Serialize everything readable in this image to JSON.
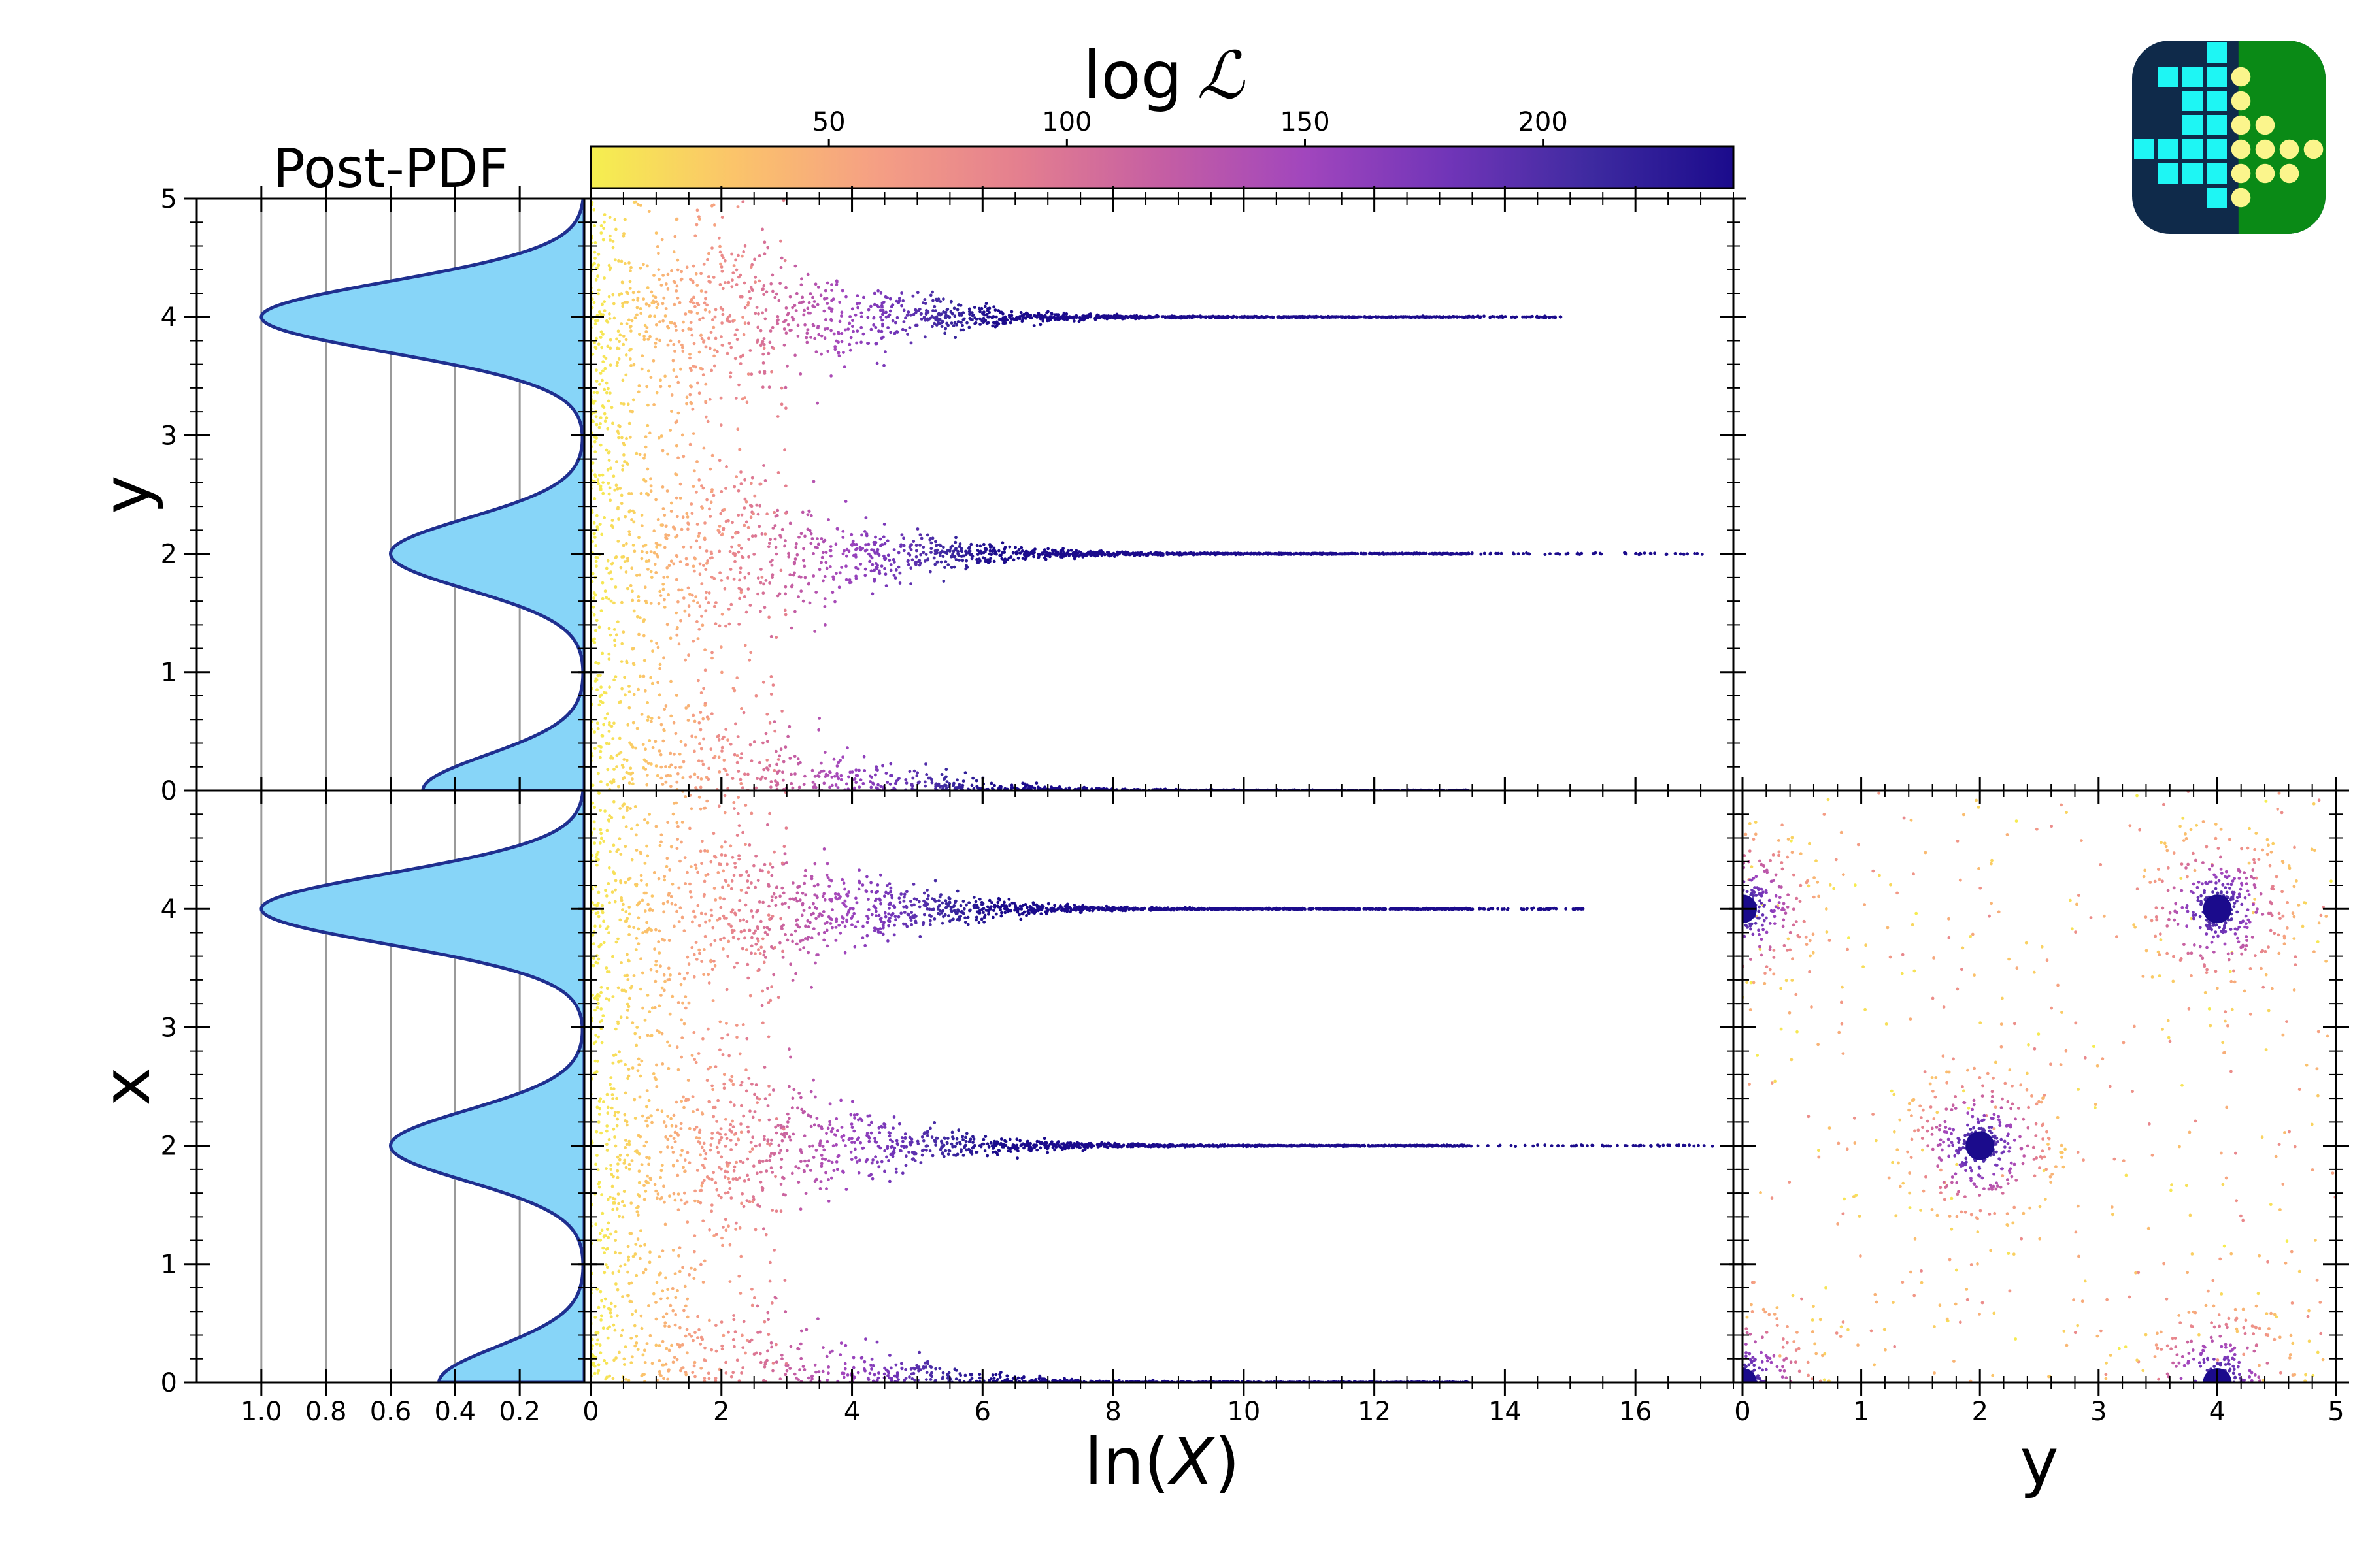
{
  "figure": {
    "colorbar_label": "log",
    "colorbar_label_symbol": "ℒ",
    "pdf_title": "Post-PDF",
    "xlabel_main": "ln(",
    "xlabel_main_var": "X",
    "xlabel_main_close": ")",
    "xlabel_corner": "y",
    "ylabel_top": "y",
    "ylabel_bottom": "x"
  },
  "colors": {
    "pdf_fill": "#87d5f8",
    "pdf_line": "#1f2f8f",
    "pdf_grid": "#9a9a9a",
    "colormap": [
      "#f5ef4f",
      "#fbc46a",
      "#f59f84",
      "#e47f8f",
      "#c55ea3",
      "#a146bd",
      "#7135b8",
      "#3e2aa0",
      "#1b0b8c"
    ],
    "logo_background": "#0f2a4a",
    "logo_cyan": "#1ef6f4",
    "logo_green": "#0a8a16",
    "logo_yellow": "#fbf58c"
  },
  "logo_icon": "grid-logo-icon",
  "chart_data": [
    {
      "type": "colorbar",
      "label": "log ℒ",
      "range": [
        0,
        240
      ],
      "ticks": [
        50,
        100,
        150,
        200
      ],
      "colormap": "plasma_r"
    },
    {
      "type": "area",
      "panel": "posterior-pdf-y",
      "title": "Post-PDF",
      "orientation": "horizontal",
      "ylabel": "y",
      "ylim": [
        0,
        5
      ],
      "xlim": [
        1.2,
        0
      ],
      "yticks": [
        0,
        1,
        2,
        3,
        4,
        5
      ],
      "peaks": [
        {
          "y": 0,
          "density": 0.5
        },
        {
          "y": 2,
          "density": 0.6
        },
        {
          "y": 4,
          "density": 1.0
        }
      ],
      "grid": true
    },
    {
      "type": "scatter",
      "panel": "lnX-vs-y",
      "xlim": [
        0,
        17.5
      ],
      "ylim": [
        0,
        5
      ],
      "xticks": [
        0,
        2,
        4,
        6,
        8,
        10,
        12,
        14,
        16
      ],
      "yticks": [
        0,
        1,
        2,
        3,
        4,
        5
      ],
      "modes_y": [
        0,
        2,
        4
      ],
      "mode_max_lnX": {
        "0": 13.4,
        "2": 17.2,
        "4": 14.9
      },
      "color_by": "log ℒ"
    },
    {
      "type": "area",
      "panel": "posterior-pdf-x",
      "orientation": "horizontal",
      "ylabel": "x",
      "ylim": [
        0,
        5
      ],
      "xlim": [
        1.2,
        0
      ],
      "xticks": [
        1.0,
        0.8,
        0.6,
        0.4,
        0.2
      ],
      "yticks": [
        0,
        1,
        2,
        3,
        4
      ],
      "peaks": [
        {
          "y": 0,
          "density": 0.45
        },
        {
          "y": 2,
          "density": 0.6
        },
        {
          "y": 4,
          "density": 1.0
        }
      ],
      "grid": true
    },
    {
      "type": "scatter",
      "panel": "lnX-vs-x",
      "xlabel": "ln(X)",
      "xlim": [
        0,
        17.5
      ],
      "ylim": [
        0,
        5
      ],
      "xticks": [
        0,
        2,
        4,
        6,
        8,
        10,
        12,
        14,
        16
      ],
      "yticks": [
        0,
        1,
        2,
        3,
        4
      ],
      "modes_y": [
        0,
        2,
        4
      ],
      "mode_max_lnX": {
        "0": 13.4,
        "2": 17.2,
        "4": 15.2
      },
      "color_by": "log ℒ"
    },
    {
      "type": "scatter",
      "panel": "y-vs-x",
      "xlabel": "y",
      "xlim": [
        0,
        5
      ],
      "ylim": [
        0,
        5
      ],
      "xticks": [
        0,
        1,
        2,
        3,
        4,
        5
      ],
      "clusters": [
        {
          "x": 2,
          "y": 2
        },
        {
          "x": 4,
          "y": 4
        },
        {
          "x": 0,
          "y": 4
        },
        {
          "x": 4,
          "y": 0
        },
        {
          "x": 0,
          "y": 0
        }
      ],
      "color_by": "log ℒ"
    }
  ]
}
